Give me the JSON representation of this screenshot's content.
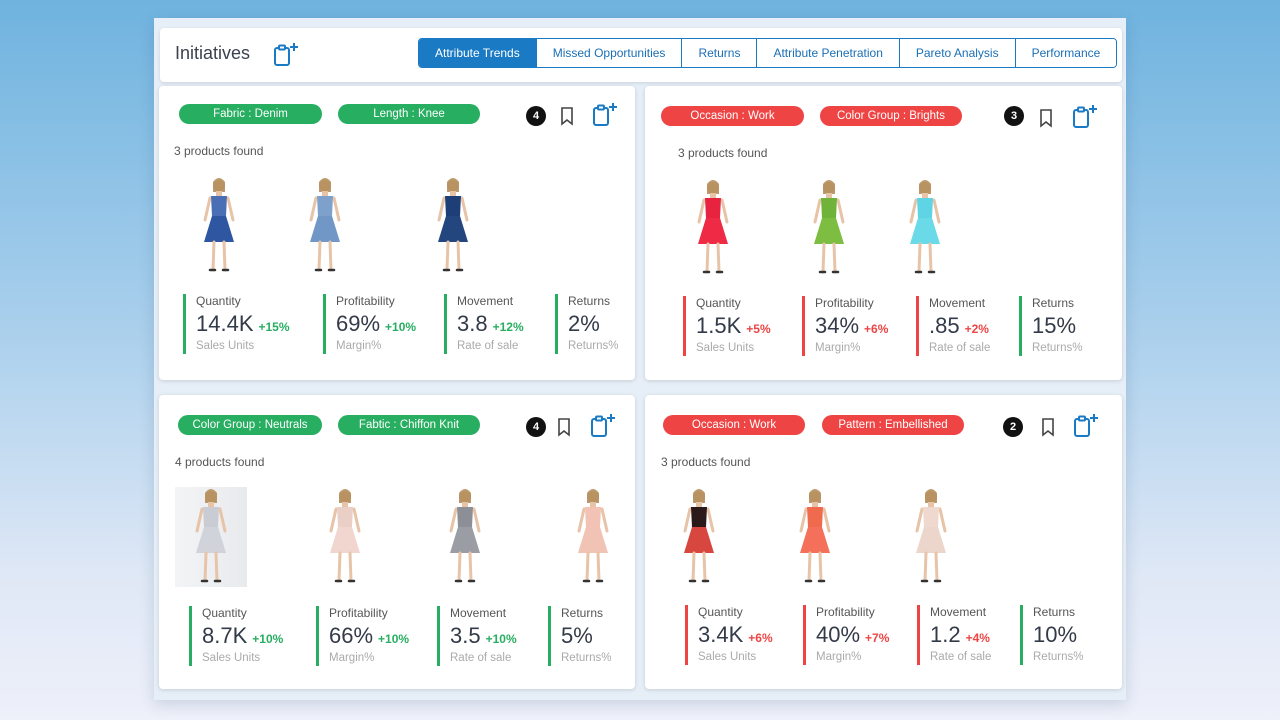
{
  "header": {
    "title": "Initiatives",
    "tabs": [
      {
        "label": "Attribute Trends",
        "active": true
      },
      {
        "label": "Missed Opportunities"
      },
      {
        "label": "Returns"
      },
      {
        "label": "Attribute Penetration"
      },
      {
        "label": "Pareto Analysis"
      },
      {
        "label": "Performance"
      }
    ]
  },
  "colors": {
    "accent": "#1a7ac4",
    "positive": "#27ae60",
    "negative": "#ee4444"
  },
  "cards": [
    {
      "chips": [
        "Fabric : Denim",
        "Length : Knee"
      ],
      "count": "4",
      "found": "3 products found",
      "dresses": [
        {
          "top": "#4b6fb5",
          "skirt": "#2f56a0"
        },
        {
          "top": "#7ea1cc",
          "skirt": "#7097c6"
        },
        {
          "top": "#1e3e78",
          "skirt": "#23467f"
        }
      ],
      "metrics": [
        {
          "label": "Quantity",
          "value": "14.4K",
          "change": "+15%",
          "sub": "Sales Units"
        },
        {
          "label": "Profitability",
          "value": "69%",
          "change": "+10%",
          "sub": "Margin%"
        },
        {
          "label": "Movement",
          "value": "3.8",
          "change": "+12%",
          "sub": "Rate of sale"
        },
        {
          "label": "Returns",
          "value": "2%",
          "change": "",
          "sub": "Returns%"
        }
      ]
    },
    {
      "chips": [
        "Occasion : Work",
        "Color Group : Brights"
      ],
      "count": "3",
      "found": "3 products found",
      "dresses": [
        {
          "top": "#e8233f",
          "skirt": "#ee2a45"
        },
        {
          "top": "#6fb33a",
          "skirt": "#7cbd42"
        },
        {
          "top": "#5fd4e4",
          "skirt": "#6ad9e8"
        }
      ],
      "metrics": [
        {
          "label": "Quantity",
          "value": "1.5K",
          "change": "+5%",
          "sub": "Sales Units"
        },
        {
          "label": "Profitability",
          "value": "34%",
          "change": "+6%",
          "sub": "Margin%"
        },
        {
          "label": "Movement",
          "value": ".85",
          "change": "+2%",
          "sub": "Rate of sale"
        },
        {
          "label": "Returns",
          "value": "15%",
          "change": "",
          "sub": "Returns%"
        }
      ]
    },
    {
      "chips": [
        "Color Group : Neutrals",
        "Fabtic : Chiffon Knit"
      ],
      "count": "4",
      "found": "4 products found",
      "dresses": [
        {
          "top": "#c9ccd3",
          "skirt": "#d0d3da"
        },
        {
          "top": "#eacfc7",
          "skirt": "#f0d6cf"
        },
        {
          "top": "#8c8f95",
          "skirt": "#9a9da3"
        },
        {
          "top": "#f2c2b4",
          "skirt": "#f0c3b4"
        }
      ],
      "metrics": [
        {
          "label": "Quantity",
          "value": "8.7K",
          "change": "+10%",
          "sub": "Sales Units"
        },
        {
          "label": "Profitability",
          "value": "66%",
          "change": "+10%",
          "sub": "Margin%"
        },
        {
          "label": "Movement",
          "value": "3.5",
          "change": "+10%",
          "sub": "Rate of sale"
        },
        {
          "label": "Returns",
          "value": "5%",
          "change": "",
          "sub": "Returns%"
        }
      ]
    },
    {
      "chips": [
        "Occasion : Work",
        "Pattern : Embellished"
      ],
      "count": "2",
      "found": "3 products found",
      "dresses": [
        {
          "top": "#2a1a1a",
          "skirt": "#d8473f"
        },
        {
          "top": "#f06a4e",
          "skirt": "#f4705a"
        },
        {
          "top": "#efd9cf",
          "skirt": "#ecd6cb"
        }
      ],
      "metrics": [
        {
          "label": "Quantity",
          "value": "3.4K",
          "change": "+6%",
          "sub": "Sales Units"
        },
        {
          "label": "Profitability",
          "value": "40%",
          "change": "+7%",
          "sub": "Margin%"
        },
        {
          "label": "Movement",
          "value": "1.2",
          "change": "+4%",
          "sub": "Rate of sale"
        },
        {
          "label": "Returns",
          "value": "10%",
          "change": "",
          "sub": "Returns%"
        }
      ]
    }
  ]
}
